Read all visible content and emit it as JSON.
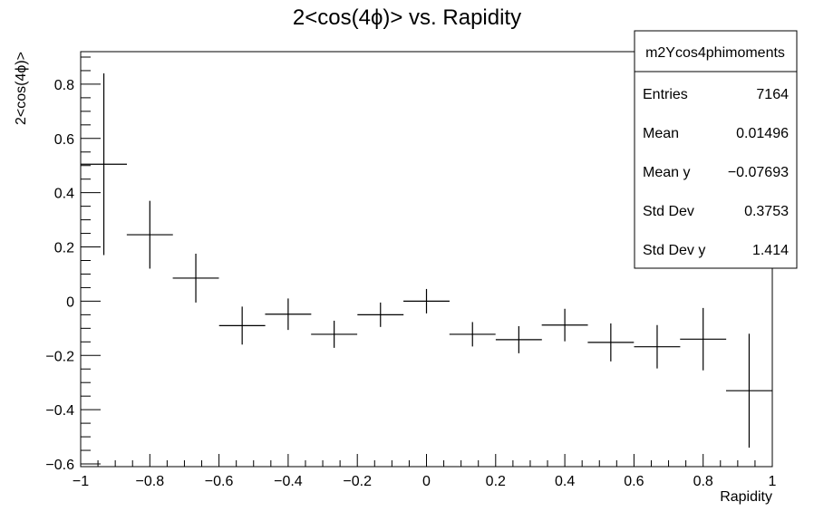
{
  "chart_data": {
    "type": "scatter",
    "title": "2<cos(4ϕ)> vs. Rapidity",
    "xlabel": "Rapidity",
    "ylabel": "2<cos(4ϕ)>",
    "xlim": [
      -1,
      1
    ],
    "ylim": [
      -0.61,
      0.92
    ],
    "grid": false,
    "x_ticks": [
      -1,
      -0.8,
      -0.6,
      -0.4,
      -0.2,
      0,
      0.2,
      0.4,
      0.6,
      0.8,
      1
    ],
    "x_tick_labels": [
      "−1",
      "−0.8",
      "−0.6",
      "−0.4",
      "−0.2",
      "0",
      "0.2",
      "0.4",
      "0.6",
      "0.8",
      "1"
    ],
    "y_ticks": [
      -0.6,
      -0.4,
      -0.2,
      0,
      0.2,
      0.4,
      0.6,
      0.8
    ],
    "y_tick_labels": [
      "−0.6",
      "−0.4",
      "−0.2",
      "0",
      "0.2",
      "0.4",
      "0.6",
      "0.8"
    ],
    "series": [
      {
        "points": [
          {
            "x": -0.933,
            "xerr": 0.0667,
            "y": 0.505,
            "yerr": 0.335
          },
          {
            "x": -0.8,
            "xerr": 0.0667,
            "y": 0.245,
            "yerr": 0.125
          },
          {
            "x": -0.667,
            "xerr": 0.0667,
            "y": 0.085,
            "yerr": 0.09
          },
          {
            "x": -0.533,
            "xerr": 0.0667,
            "y": -0.09,
            "yerr": 0.07
          },
          {
            "x": -0.4,
            "xerr": 0.0667,
            "y": -0.048,
            "yerr": 0.058
          },
          {
            "x": -0.267,
            "xerr": 0.0667,
            "y": -0.122,
            "yerr": 0.05
          },
          {
            "x": -0.133,
            "xerr": 0.0667,
            "y": -0.05,
            "yerr": 0.045
          },
          {
            "x": 0.0,
            "xerr": 0.0667,
            "y": 0.0,
            "yerr": 0.045
          },
          {
            "x": 0.133,
            "xerr": 0.0667,
            "y": -0.122,
            "yerr": 0.045
          },
          {
            "x": 0.267,
            "xerr": 0.0667,
            "y": -0.142,
            "yerr": 0.05
          },
          {
            "x": 0.4,
            "xerr": 0.0667,
            "y": -0.088,
            "yerr": 0.06
          },
          {
            "x": 0.533,
            "xerr": 0.0667,
            "y": -0.152,
            "yerr": 0.07
          },
          {
            "x": 0.667,
            "xerr": 0.0667,
            "y": -0.168,
            "yerr": 0.08
          },
          {
            "x": 0.8,
            "xerr": 0.0667,
            "y": -0.14,
            "yerr": 0.115
          },
          {
            "x": 0.933,
            "xerr": 0.0667,
            "y": -0.33,
            "yerr": 0.21
          }
        ]
      }
    ],
    "legend": "top-right",
    "stats_box": {
      "name": "m2Ycos4phimoments",
      "rows": [
        {
          "label": "Entries",
          "value": "7164"
        },
        {
          "label": "Mean",
          "value": "0.01496"
        },
        {
          "label": "Mean y",
          "value": "−0.07693"
        },
        {
          "label": "Std Dev",
          "value": "0.3753"
        },
        {
          "label": "Std Dev y",
          "value": "1.414"
        }
      ]
    }
  }
}
